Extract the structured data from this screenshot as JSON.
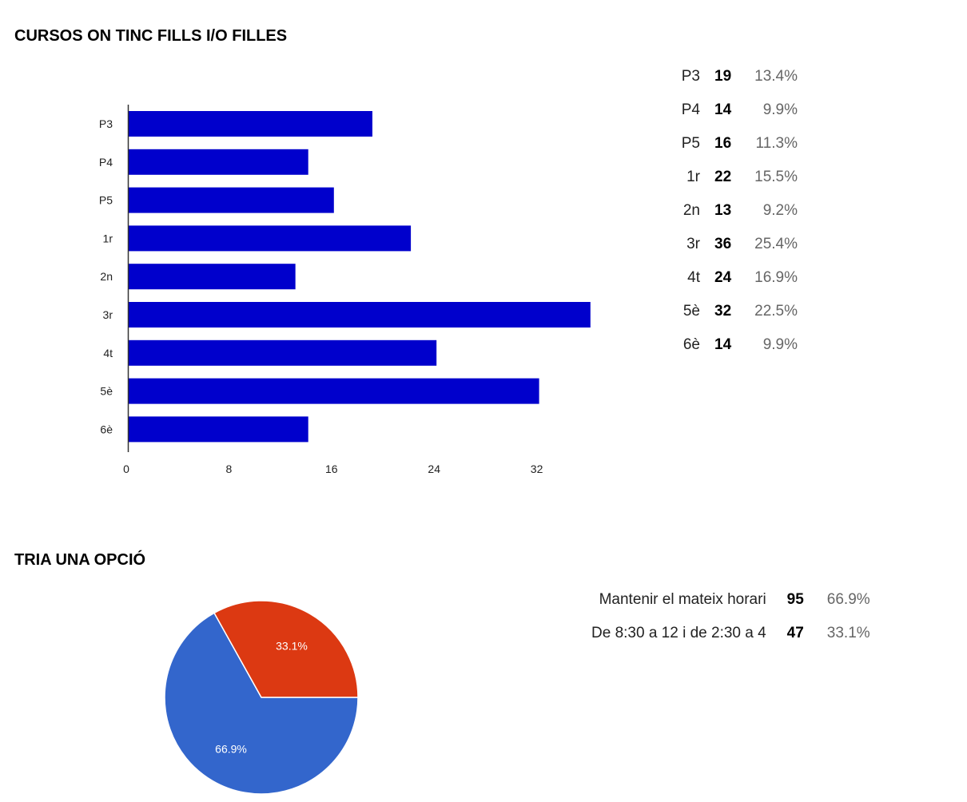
{
  "charts": {
    "bar_title": "CURSOS ON TINC FILLS I/O FILLES",
    "pie_title": "TRIA UNA OPCIÓ"
  },
  "bar_summary": [
    {
      "label": "P3",
      "count": "19",
      "percent": "13.4%"
    },
    {
      "label": "P4",
      "count": "14",
      "percent": "9.9%"
    },
    {
      "label": "P5",
      "count": "16",
      "percent": "11.3%"
    },
    {
      "label": "1r",
      "count": "22",
      "percent": "15.5%"
    },
    {
      "label": "2n",
      "count": "13",
      "percent": "9.2%"
    },
    {
      "label": "3r",
      "count": "36",
      "percent": "25.4%"
    },
    {
      "label": "4t",
      "count": "24",
      "percent": "16.9%"
    },
    {
      "label": "5è",
      "count": "32",
      "percent": "22.5%"
    },
    {
      "label": "6è",
      "count": "14",
      "percent": "9.9%"
    }
  ],
  "pie_summary": [
    {
      "label": "Mantenir el mateix horari",
      "count": "95",
      "percent": "66.9%"
    },
    {
      "label": "De 8:30 a 12 i de 2:30 a 4",
      "count": "47",
      "percent": "33.1%"
    }
  ],
  "chart_data": [
    {
      "type": "bar",
      "orientation": "horizontal",
      "title": "CURSOS ON TINC FILLS I/O FILLES",
      "categories": [
        "P3",
        "P4",
        "P5",
        "1r",
        "2n",
        "3r",
        "4t",
        "5è",
        "6è"
      ],
      "values": [
        19,
        14,
        16,
        22,
        13,
        36,
        24,
        32,
        14
      ],
      "xticks": [
        0,
        8,
        16,
        24,
        32
      ],
      "xlim": [
        0,
        36
      ],
      "color": "#0000cc",
      "grid": false,
      "legend": "right"
    },
    {
      "type": "pie",
      "title": "TRIA UNA OPCIÓ",
      "slices": [
        {
          "label": "Mantenir el mateix horari",
          "value": 95,
          "percent": "66.9%",
          "color": "#3366cc"
        },
        {
          "label": "De 8:30 a 12 i de 2:30 a 4",
          "value": 47,
          "percent": "33.1%",
          "color": "#dc3912"
        }
      ],
      "legend": "right"
    }
  ]
}
